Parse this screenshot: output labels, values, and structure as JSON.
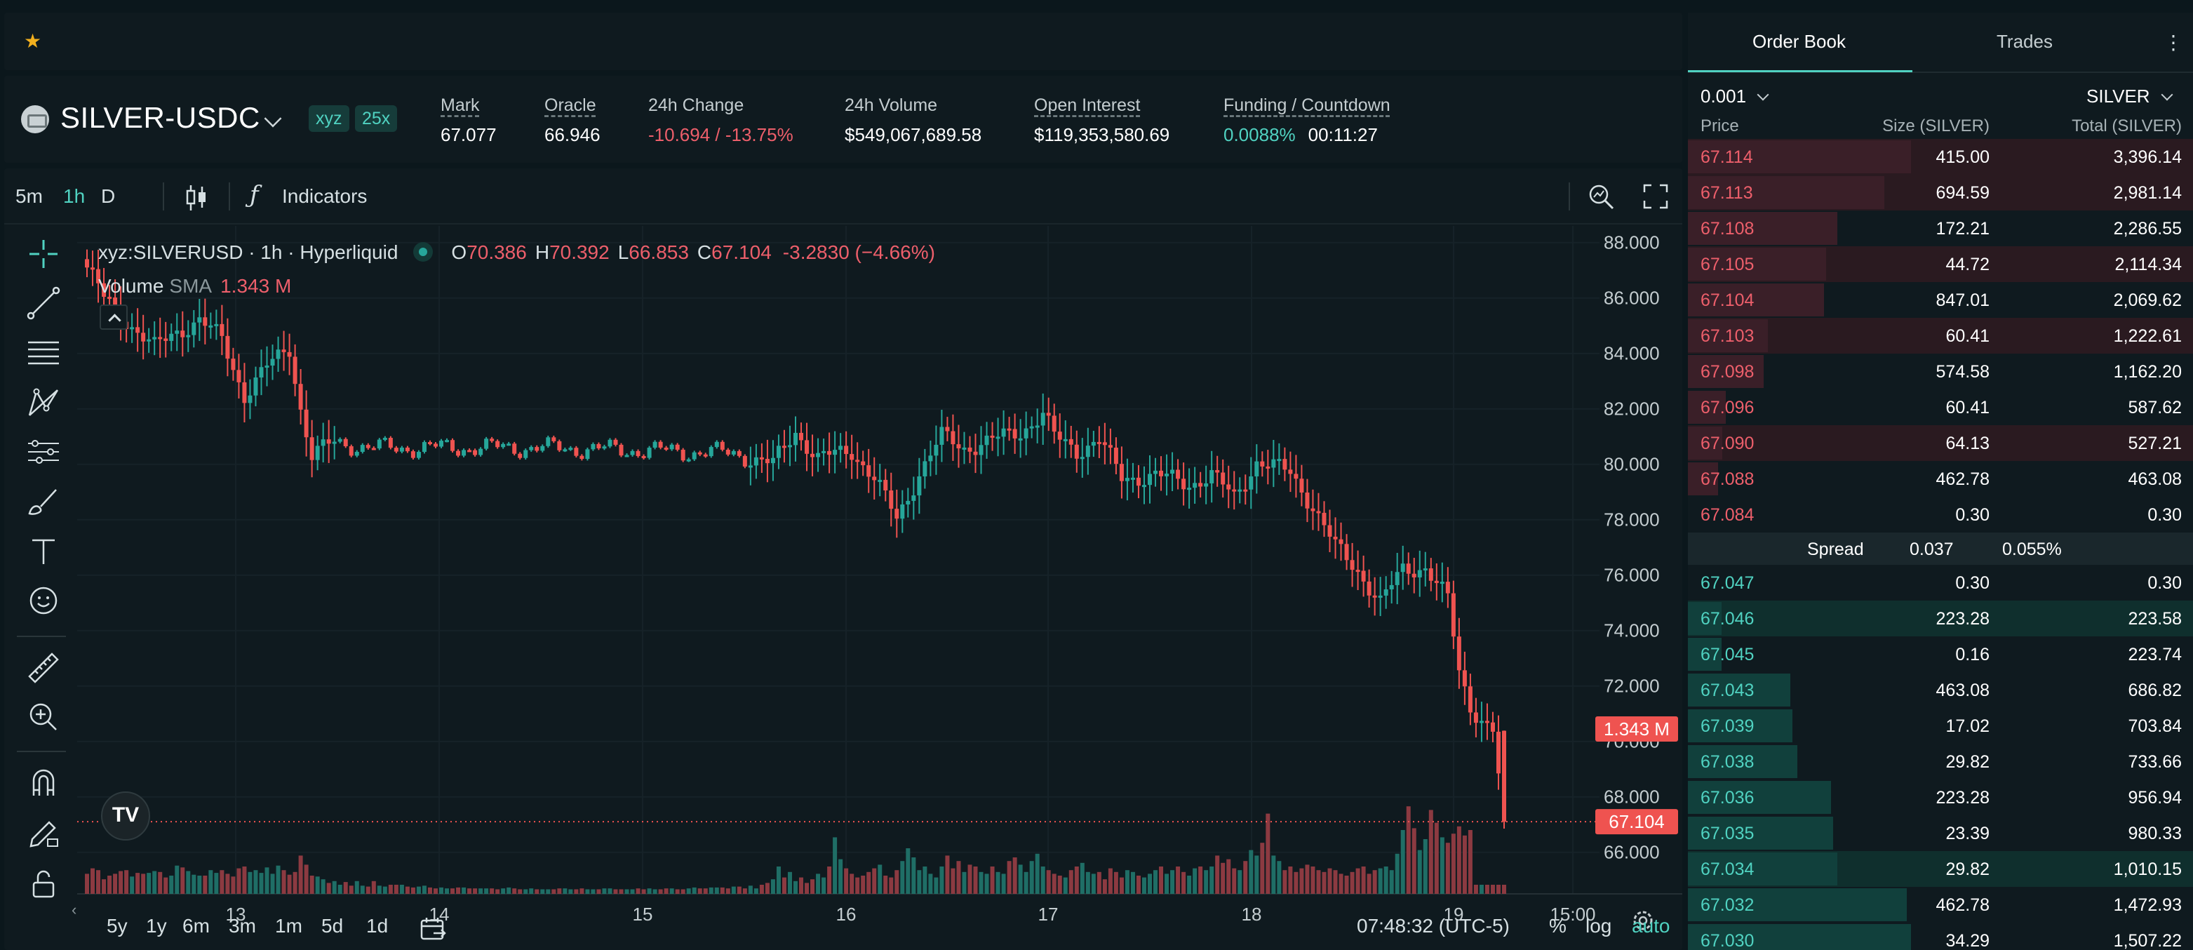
{
  "favorites": {
    "star_icon": "star-icon"
  },
  "ticker": {
    "pair": "SILVER-USDC",
    "tags": [
      "xyz",
      "25x"
    ],
    "stats": [
      {
        "label": "Mark",
        "value": "67.077",
        "dashed": true,
        "tone": "normal"
      },
      {
        "label": "Oracle",
        "value": "66.946",
        "dashed": true,
        "tone": "normal"
      },
      {
        "label": "24h Change",
        "value": "-10.694 / -13.75%",
        "dashed": false,
        "tone": "red"
      },
      {
        "label": "24h Volume",
        "value": "$549,067,689.58",
        "dashed": false,
        "tone": "normal"
      },
      {
        "label": "Open Interest",
        "value": "$119,353,580.69",
        "dashed": true,
        "tone": "normal"
      }
    ],
    "funding": {
      "label": "Funding / Countdown",
      "rate": "0.0088%",
      "countdown": "00:11:27"
    }
  },
  "toolbar": {
    "intervals": [
      {
        "label": "5m",
        "active": false
      },
      {
        "label": "1h",
        "active": true
      },
      {
        "label": "D",
        "active": false
      }
    ],
    "indicators_label": "Indicators"
  },
  "legend": {
    "symbol": "xyz:SILVERUSD · 1h · Hyperliquid",
    "o_label": "O",
    "o": "70.386",
    "h_label": "H",
    "h": "70.392",
    "l_label": "L",
    "l": "66.853",
    "c_label": "C",
    "c": "67.104",
    "change": "-3.2830 (−4.66%)",
    "volume_name": "Volume",
    "volume_sma": "SMA",
    "volume_value": "1.343 M"
  },
  "chart_data": {
    "type": "candlestick",
    "y_ticks": [
      "88.000",
      "86.000",
      "84.000",
      "82.000",
      "80.000",
      "78.000",
      "76.000",
      "74.000",
      "72.000",
      "70.000",
      "68.000",
      "66.000"
    ],
    "ylim": [
      64.5,
      88.6
    ],
    "x_ticks": [
      "13",
      "14",
      "15",
      "16",
      "17",
      "18",
      "19",
      "15:00"
    ],
    "price_label": "67.104",
    "volume_label": "1.343 M",
    "anchors": [
      [
        0,
        87.1
      ],
      [
        3,
        86.0
      ],
      [
        8,
        85.0
      ],
      [
        12,
        84.2
      ],
      [
        16,
        84.8
      ],
      [
        20,
        85.2
      ],
      [
        24,
        84.5
      ],
      [
        28,
        82.5
      ],
      [
        32,
        83.5
      ],
      [
        36,
        84.2
      ],
      [
        38,
        82.0
      ],
      [
        40,
        80.3
      ],
      [
        44,
        80.8
      ],
      [
        50,
        80.6
      ],
      [
        60,
        80.6
      ],
      [
        80,
        80.6
      ],
      [
        100,
        80.5
      ],
      [
        115,
        80.4
      ],
      [
        122,
        80.0
      ],
      [
        126,
        81.2
      ],
      [
        130,
        80.2
      ],
      [
        136,
        80.5
      ],
      [
        140,
        79.5
      ],
      [
        144,
        78.0
      ],
      [
        148,
        79.7
      ],
      [
        152,
        81.0
      ],
      [
        156,
        80.6
      ],
      [
        160,
        80.8
      ],
      [
        166,
        81.2
      ],
      [
        170,
        81.8
      ],
      [
        172,
        81.0
      ],
      [
        176,
        80.5
      ],
      [
        180,
        80.9
      ],
      [
        184,
        79.5
      ],
      [
        190,
        79.6
      ],
      [
        196,
        79.3
      ],
      [
        200,
        79.6
      ],
      [
        204,
        78.8
      ],
      [
        208,
        80.1
      ],
      [
        214,
        79.7
      ],
      [
        218,
        78.5
      ],
      [
        222,
        77.0
      ],
      [
        226,
        76.2
      ],
      [
        230,
        75.0
      ],
      [
        234,
        76.2
      ],
      [
        238,
        76.3
      ],
      [
        242,
        75.1
      ],
      [
        244,
        72.5
      ],
      [
        246,
        71.3
      ],
      [
        248,
        70.8
      ],
      [
        250,
        70.4
      ],
      [
        252,
        67.1
      ]
    ],
    "volumes": [
      0.22,
      0.28,
      0.26,
      0.16,
      0.2,
      0.22,
      0.25,
      0.26,
      0.19,
      0.23,
      0.22,
      0.23,
      0.25,
      0.24,
      0.18,
      0.2,
      0.31,
      0.29,
      0.25,
      0.21,
      0.2,
      0.2,
      0.26,
      0.23,
      0.26,
      0.22,
      0.19,
      0.28,
      0.3,
      0.24,
      0.26,
      0.23,
      0.29,
      0.22,
      0.31,
      0.26,
      0.21,
      0.24,
      0.42,
      0.32,
      0.2,
      0.19,
      0.16,
      0.12,
      0.14,
      0.1,
      0.13,
      0.09,
      0.14,
      0.09,
      0.08,
      0.14,
      0.09,
      0.08,
      0.1,
      0.1,
      0.1,
      0.08,
      0.07,
      0.08,
      0.09,
      0.07,
      0.06,
      0.07,
      0.06,
      0.06,
      0.07,
      0.07,
      0.06,
      0.06,
      0.06,
      0.06,
      0.06,
      0.05,
      0.06,
      0.07,
      0.06,
      0.05,
      0.05,
      0.06,
      0.05,
      0.05,
      0.05,
      0.05,
      0.06,
      0.06,
      0.05,
      0.05,
      0.06,
      0.05,
      0.05,
      0.05,
      0.06,
      0.06,
      0.05,
      0.05,
      0.05,
      0.05,
      0.06,
      0.05,
      0.06,
      0.05,
      0.05,
      0.06,
      0.06,
      0.05,
      0.05,
      0.06,
      0.07,
      0.06,
      0.06,
      0.07,
      0.07,
      0.07,
      0.06,
      0.08,
      0.08,
      0.06,
      0.09,
      0.06,
      0.1,
      0.12,
      0.16,
      0.3,
      0.18,
      0.24,
      0.14,
      0.18,
      0.12,
      0.16,
      0.22,
      0.18,
      0.3,
      0.62,
      0.38,
      0.28,
      0.22,
      0.18,
      0.2,
      0.24,
      0.28,
      0.32,
      0.2,
      0.18,
      0.26,
      0.36,
      0.5,
      0.4,
      0.26,
      0.3,
      0.22,
      0.18,
      0.3,
      0.42,
      0.28,
      0.36,
      0.24,
      0.32,
      0.3,
      0.24,
      0.22,
      0.3,
      0.24,
      0.22,
      0.36,
      0.4,
      0.32,
      0.24,
      0.36,
      0.44,
      0.3,
      0.26,
      0.22,
      0.2,
      0.18,
      0.26,
      0.3,
      0.34,
      0.24,
      0.22,
      0.24,
      0.16,
      0.28,
      0.24,
      0.18,
      0.26,
      0.24,
      0.2,
      0.18,
      0.22,
      0.26,
      0.3,
      0.22,
      0.26,
      0.3,
      0.24,
      0.2,
      0.28,
      0.3,
      0.26,
      0.3,
      0.42,
      0.34,
      0.38,
      0.28,
      0.26,
      0.36,
      0.48,
      0.42,
      0.56,
      0.88,
      0.42,
      0.36,
      0.26,
      0.3,
      0.24,
      0.28,
      0.32,
      0.3,
      0.26,
      0.24,
      0.28,
      0.26,
      0.22,
      0.2,
      0.24,
      0.28,
      0.3,
      0.22,
      0.26,
      0.28,
      0.3,
      0.26,
      0.44,
      0.7,
      0.96,
      0.72,
      0.48,
      0.6,
      0.92,
      0.78,
      0.62,
      0.56,
      0.66,
      0.74,
      0.64,
      0.7
    ]
  },
  "lefttools": [
    "crosshair-icon",
    "trendline-icon",
    "fib-lines-icon",
    "pattern-icon",
    "forecast-icon",
    "brush-icon",
    "text-icon",
    "emoji-icon",
    "ruler-icon",
    "zoom-in-icon",
    "magnet-icon",
    "pencil-lock-icon",
    "lock-icon"
  ],
  "bottombar": {
    "ranges": [
      "5y",
      "1y",
      "6m",
      "3m",
      "1m",
      "5d",
      "1d"
    ],
    "time": "07:48:32 (UTC-5)",
    "pct": "%",
    "log": "log",
    "auto": "auto"
  },
  "book": {
    "tabs": [
      "Order Book",
      "Trades"
    ],
    "tick": "0.001",
    "unit": "SILVER",
    "headers": [
      "Price",
      "Size (SILVER)",
      "Total (SILVER)"
    ],
    "asks": [
      {
        "p": "67.114",
        "s": "415.00",
        "t": "3,396.14",
        "bar": 1.0,
        "hl": true
      },
      {
        "p": "67.113",
        "s": "694.59",
        "t": "2,981.14",
        "bar": 0.88,
        "hl": true
      },
      {
        "p": "67.108",
        "s": "172.21",
        "t": "2,286.55",
        "bar": 0.67,
        "hl": false
      },
      {
        "p": "67.105",
        "s": "44.72",
        "t": "2,114.34",
        "bar": 0.62,
        "hl": true
      },
      {
        "p": "67.104",
        "s": "847.01",
        "t": "2,069.62",
        "bar": 0.61,
        "hl": false
      },
      {
        "p": "67.103",
        "s": "60.41",
        "t": "1,222.61",
        "bar": 0.36,
        "hl": true
      },
      {
        "p": "67.098",
        "s": "574.58",
        "t": "1,162.20",
        "bar": 0.34,
        "hl": false
      },
      {
        "p": "67.096",
        "s": "60.41",
        "t": "587.62",
        "bar": 0.17,
        "hl": false
      },
      {
        "p": "67.090",
        "s": "64.13",
        "t": "527.21",
        "bar": 0.155,
        "hl": true
      },
      {
        "p": "67.088",
        "s": "462.78",
        "t": "463.08",
        "bar": 0.136,
        "hl": false
      },
      {
        "p": "67.084",
        "s": "0.30",
        "t": "0.30",
        "bar": 0.0,
        "hl": false
      }
    ],
    "spread": {
      "label": "Spread",
      "value": "0.037",
      "pct": "0.055%"
    },
    "bids": [
      {
        "p": "67.047",
        "s": "0.30",
        "t": "0.30",
        "bar": 0.0,
        "hl": false
      },
      {
        "p": "67.046",
        "s": "223.28",
        "t": "223.58",
        "bar": 0.15,
        "hl": true
      },
      {
        "p": "67.045",
        "s": "0.16",
        "t": "223.74",
        "bar": 0.15,
        "hl": false
      },
      {
        "p": "67.043",
        "s": "463.08",
        "t": "686.82",
        "bar": 0.46,
        "hl": false
      },
      {
        "p": "67.039",
        "s": "17.02",
        "t": "703.84",
        "bar": 0.47,
        "hl": false
      },
      {
        "p": "67.038",
        "s": "29.82",
        "t": "733.66",
        "bar": 0.49,
        "hl": false
      },
      {
        "p": "67.036",
        "s": "223.28",
        "t": "956.94",
        "bar": 0.64,
        "hl": false
      },
      {
        "p": "67.035",
        "s": "23.39",
        "t": "980.33",
        "bar": 0.65,
        "hl": false
      },
      {
        "p": "67.034",
        "s": "29.82",
        "t": "1,010.15",
        "bar": 0.67,
        "hl": true
      },
      {
        "p": "67.032",
        "s": "462.78",
        "t": "1,472.93",
        "bar": 0.98,
        "hl": false
      },
      {
        "p": "67.030",
        "s": "34.29",
        "t": "1,507.22",
        "bar": 1.0,
        "hl": false
      }
    ]
  },
  "colors": {
    "up": "#26a69a",
    "down": "#ef5350",
    "accent": "#50d2c1",
    "ask": "#ed5f6b"
  }
}
